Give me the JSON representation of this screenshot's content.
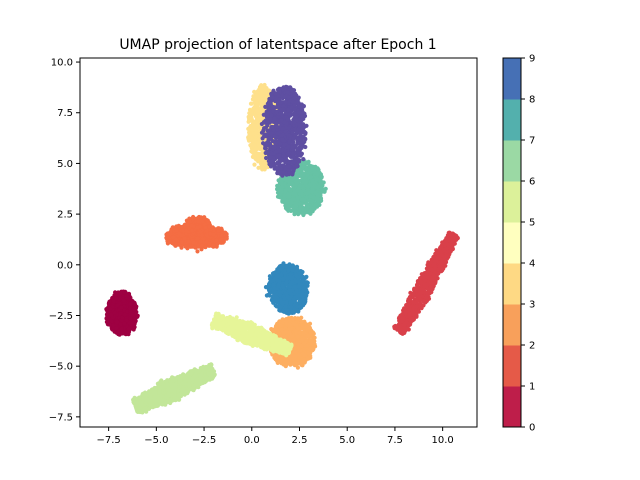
{
  "chart_data": {
    "type": "scatter",
    "title": "UMAP projection of latentspace after Epoch 1",
    "xlabel": "",
    "ylabel": "",
    "xlim": [
      -9.0,
      11.8
    ],
    "ylim": [
      -8.0,
      10.2
    ],
    "xticks": [
      -7.5,
      -5.0,
      -2.5,
      0.0,
      2.5,
      5.0,
      7.5,
      10.0
    ],
    "yticks": [
      -7.5,
      -5.0,
      -2.5,
      0.0,
      2.5,
      5.0,
      7.5,
      10.0
    ],
    "xtick_labels": [
      "−7.5",
      "−5.0",
      "−2.5",
      "0.0",
      "2.5",
      "5.0",
      "7.5",
      "10.0"
    ],
    "ytick_labels": [
      "−7.5",
      "−5.0",
      "−2.5",
      "0.0",
      "2.5",
      "5.0",
      "7.5",
      "10.0"
    ],
    "grid": false,
    "colorbar": {
      "min": 0,
      "max": 9,
      "ticks": [
        "0",
        "1",
        "2",
        "3",
        "4",
        "5",
        "6",
        "7",
        "8",
        "9"
      ],
      "colors": [
        "#be1e4a",
        "#e55a48",
        "#f8a05b",
        "#fed984",
        "#ffffbf",
        "#dcf19a",
        "#9bd9a4",
        "#53b0ad",
        "#4670b5"
      ]
    },
    "clusters": [
      {
        "label": 0,
        "color": "#9e0142",
        "shape": "ellipse",
        "cx": -6.8,
        "cy": -2.4,
        "rx": 0.75,
        "ry": 1.05,
        "angle": 0,
        "n": 900
      },
      {
        "label": 1,
        "color": "#d9404a",
        "shape": "line",
        "x0": 7.7,
        "y0": -3.3,
        "x1": 10.6,
        "y1": 1.5,
        "width": 0.9,
        "n": 900
      },
      {
        "label": 2,
        "color": "#f46d43",
        "shape": "ellipse",
        "cx": -2.9,
        "cy": 1.4,
        "rx": 1.6,
        "ry": 0.55,
        "angle": 0,
        "n": 700
      },
      {
        "label": 2,
        "color": "#f46d43",
        "shape": "ellipse",
        "cx": -2.8,
        "cy": 2.0,
        "rx": 0.6,
        "ry": 0.35,
        "angle": 0,
        "n": 150
      },
      {
        "label": 3,
        "color": "#fdae61",
        "shape": "ellipse",
        "cx": 2.1,
        "cy": -3.8,
        "rx": 1.2,
        "ry": 1.2,
        "angle": 0,
        "n": 900
      },
      {
        "label": 4,
        "color": "#fee08b",
        "shape": "ellipse",
        "cx": 0.6,
        "cy": 6.8,
        "rx": 0.75,
        "ry": 2.1,
        "angle": 0,
        "n": 700
      },
      {
        "label": 5,
        "color": "#e6f598",
        "shape": "line",
        "x0": -2.0,
        "y0": -2.7,
        "x1": 2.0,
        "y1": -4.2,
        "width": 1.0,
        "n": 800
      },
      {
        "label": 6,
        "color": "#c2e699",
        "shape": "line",
        "x0": -6.1,
        "y0": -7.0,
        "x1": -2.0,
        "y1": -5.2,
        "width": 1.1,
        "n": 900
      },
      {
        "label": 7,
        "color": "#66c2a5",
        "shape": "ellipse",
        "cx": 2.6,
        "cy": 3.8,
        "rx": 1.2,
        "ry": 1.3,
        "angle": 0,
        "n": 800
      },
      {
        "label": 8,
        "color": "#3288bd",
        "shape": "ellipse",
        "cx": 1.9,
        "cy": -1.2,
        "rx": 1.0,
        "ry": 1.2,
        "angle": 0,
        "n": 700
      },
      {
        "label": 9,
        "color": "#5e4fa2",
        "shape": "ellipse",
        "cx": 1.7,
        "cy": 6.6,
        "rx": 1.1,
        "ry": 2.2,
        "angle": 0,
        "n": 900
      }
    ]
  }
}
